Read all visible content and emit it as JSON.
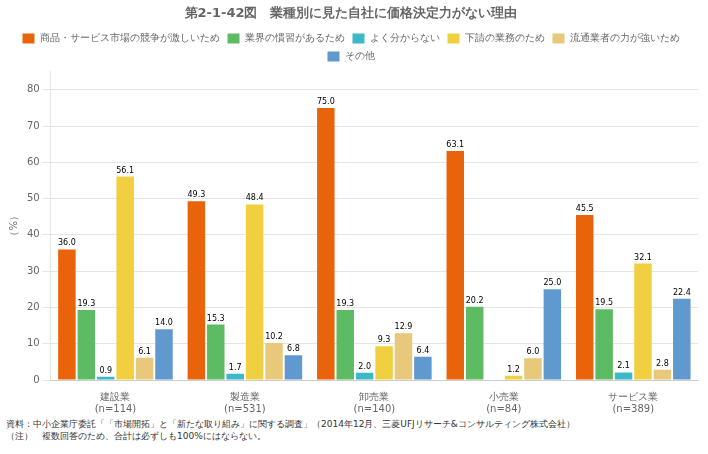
{
  "chart_data": {
    "type": "bar",
    "title": "第2-1-42図　業種別に見た自社に価格決定力がない理由",
    "y_label": "（%）",
    "categories": [
      "建設業\n(n=114)",
      "製造業\n(n=531)",
      "卸売業\n(n=140)",
      "小売業\n(n=84)",
      "サービス業\n(n=389)"
    ],
    "series": [
      {
        "name": "商品・サービス市場の競争が激しいため",
        "color": "#E8630A",
        "values": [
          36.0,
          49.3,
          75.0,
          63.1,
          45.5
        ],
        "value_labels": [
          "36.0",
          "49.3",
          "75.0",
          "63.1",
          "45.5"
        ]
      },
      {
        "name": "業界の慣習があるため",
        "color": "#5DBB63",
        "values": [
          19.3,
          15.3,
          19.3,
          20.2,
          19.5
        ],
        "value_labels": [
          "19.3",
          "15.3",
          "19.3",
          "20.2",
          "19.5"
        ]
      },
      {
        "name": "よく分からない",
        "color": "#3CB8C8",
        "values": [
          0.9,
          1.7,
          2.0,
          0.0,
          2.1
        ],
        "value_labels": [
          "0.9",
          "1.7",
          "2.0",
          null,
          "2.1"
        ]
      },
      {
        "name": "下請の業務のため",
        "color": "#F0D040",
        "values": [
          56.1,
          48.4,
          9.3,
          1.2,
          32.1
        ],
        "value_labels": [
          "56.1",
          "48.4",
          "9.3",
          "1.2",
          "32.1"
        ]
      },
      {
        "name": "流通業者の力が強いため",
        "color": "#E8C87A",
        "values": [
          6.1,
          10.2,
          12.9,
          6.0,
          2.8
        ],
        "value_labels": [
          "6.1",
          "10.2",
          "12.9",
          "6.0",
          "2.8"
        ]
      },
      {
        "name": "その他",
        "color": "#6098D0",
        "values": [
          14.0,
          6.8,
          6.4,
          25.0,
          22.4
        ],
        "value_labels": [
          "14.0",
          "6.8",
          "6.4",
          "25.0",
          "22.4"
        ]
      }
    ],
    "ylim": [
      0,
      85
    ],
    "yticks": [
      0,
      10,
      20,
      30,
      40,
      50,
      60,
      70,
      80
    ],
    "grid": true,
    "legend": "top",
    "data_labels": true,
    "annotations": [
      "資料：中小企業庁委託「「市場開拓」と「新たな取り組み」に関する調査」（2014年12月、三菱UFJリサーチ&コンサルティング株式会社）",
      "（注）　複数回答のため、合計は必ずしも100%にはならない。"
    ]
  }
}
